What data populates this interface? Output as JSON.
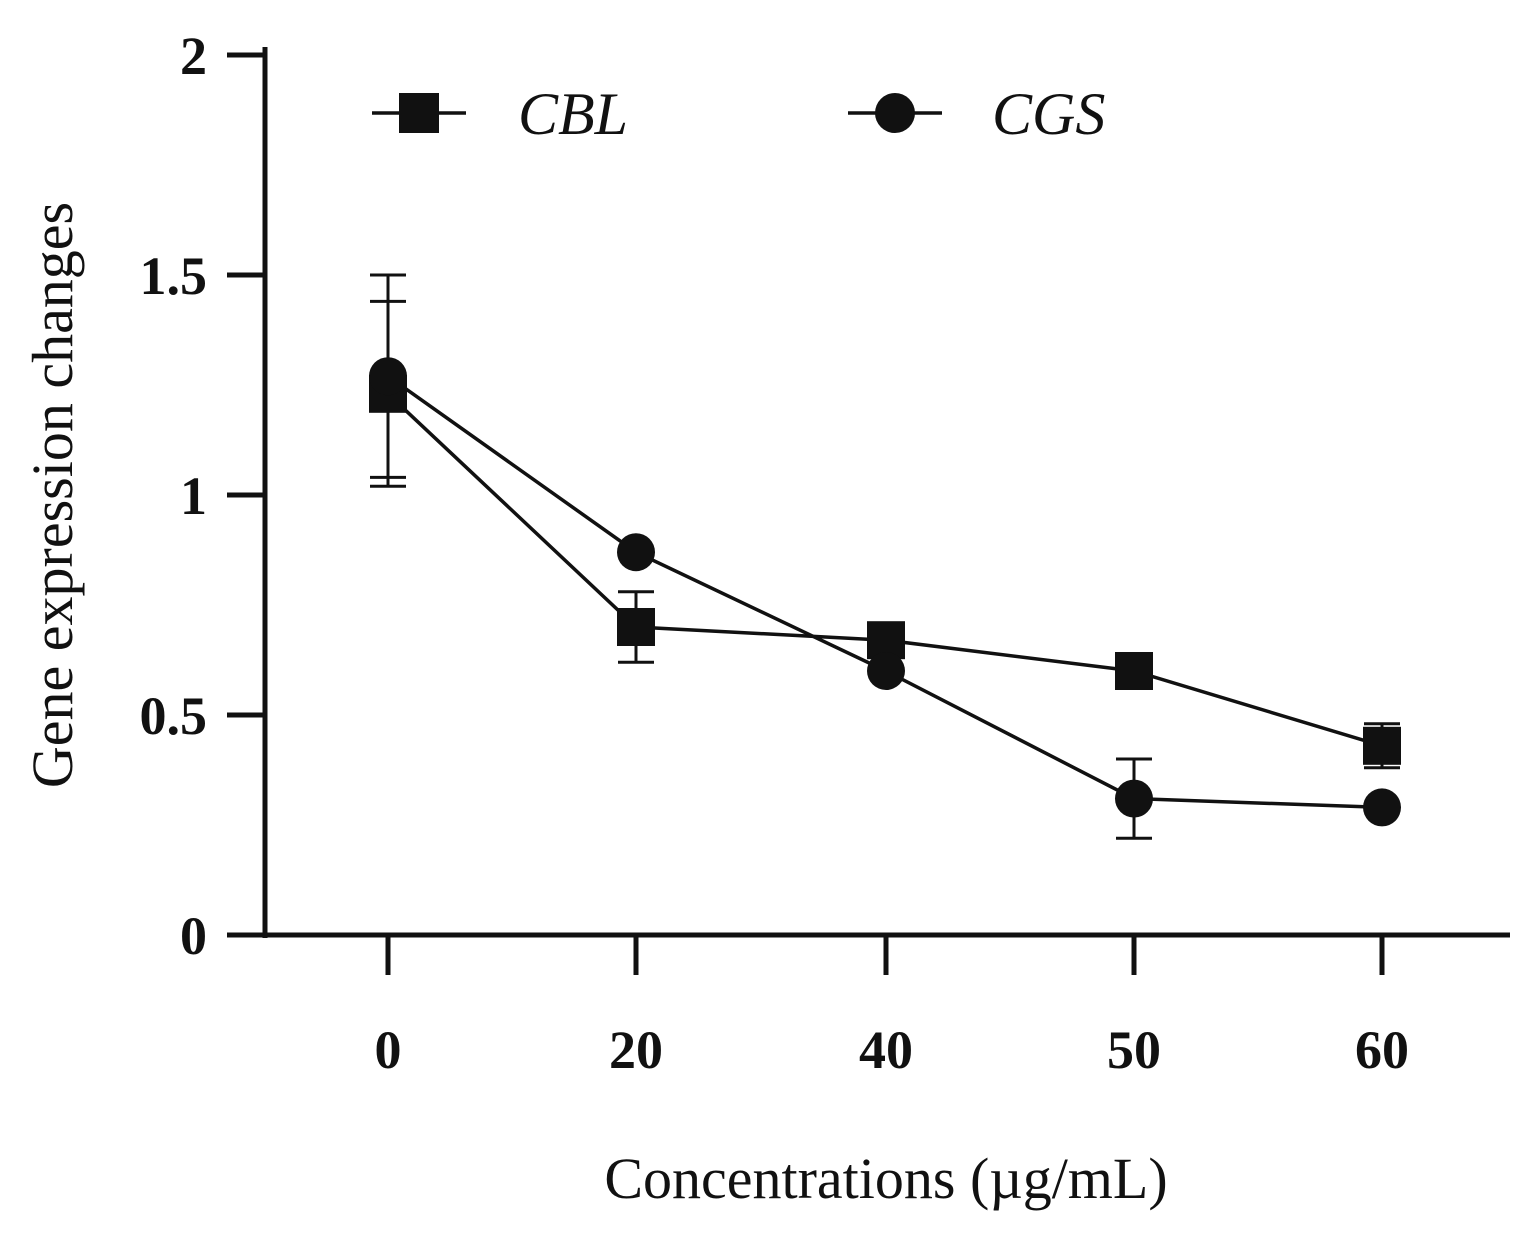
{
  "chart_data": {
    "type": "line",
    "title": "",
    "xlabel": "Concentrations (µg/mL)",
    "ylabel": "Gene expression changes",
    "categories": [
      "0",
      "20",
      "40",
      "50",
      "60"
    ],
    "ylim": [
      0,
      2
    ],
    "yticks": [
      "0",
      "0.5",
      "1",
      "1.5",
      "2"
    ],
    "ytick_values": [
      0,
      0.5,
      1,
      1.5,
      2
    ],
    "grid": false,
    "legend_position": "top",
    "series": [
      {
        "name": "CBL",
        "marker": "square",
        "values": [
          1.23,
          0.7,
          0.67,
          0.6,
          0.43
        ],
        "errors": [
          0.21,
          0.08,
          0.0,
          0.0,
          0.05
        ]
      },
      {
        "name": "CGS",
        "marker": "circle",
        "values": [
          1.27,
          0.87,
          0.6,
          0.31,
          0.29
        ],
        "errors": [
          0.23,
          0.0,
          0.0,
          0.09,
          0.0
        ]
      }
    ],
    "colors": {
      "line": "#111111",
      "background": "#ffffff"
    }
  }
}
